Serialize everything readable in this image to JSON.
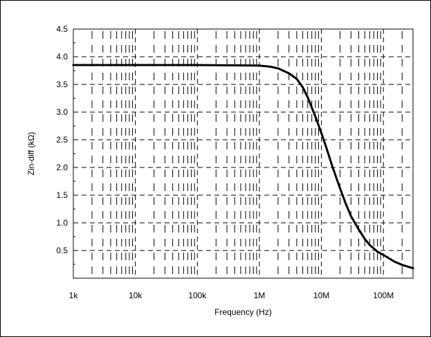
{
  "chart_data": {
    "type": "line",
    "title": "",
    "xlabel": "Frequency (Hz)",
    "ylabel": "Zin-diff (kΩ)",
    "xscale": "log",
    "xlim": [
      1000,
      300000000
    ],
    "ylim": [
      0,
      4.5
    ],
    "grid": "dashed",
    "legend": "none",
    "x_ticks": [
      {
        "value": 1000,
        "label": "1k"
      },
      {
        "value": 10000,
        "label": "10k"
      },
      {
        "value": 100000,
        "label": "100k"
      },
      {
        "value": 1000000,
        "label": "1M"
      },
      {
        "value": 10000000,
        "label": "10M"
      },
      {
        "value": 100000000,
        "label": "100M"
      }
    ],
    "y_ticks": [
      {
        "value": 0.5,
        "label": "0.5"
      },
      {
        "value": 1.0,
        "label": "1.0"
      },
      {
        "value": 1.5,
        "label": "1.5"
      },
      {
        "value": 2.0,
        "label": "2.0"
      },
      {
        "value": 2.5,
        "label": "2.5"
      },
      {
        "value": 3.0,
        "label": "3.0"
      },
      {
        "value": 3.5,
        "label": "3.5"
      },
      {
        "value": 4.0,
        "label": "4.0"
      },
      {
        "value": 4.5,
        "label": "4.5"
      }
    ],
    "series": [
      {
        "color": "#000000",
        "x": [
          1000,
          10000,
          100000,
          1000000,
          1500000,
          2000000,
          3000000,
          4000000,
          5000000,
          6000000,
          7000000,
          8000000,
          10000000,
          12000000,
          15000000,
          20000000,
          25000000,
          30000000,
          40000000,
          50000000,
          60000000,
          80000000,
          100000000,
          150000000,
          200000000,
          300000000
        ],
        "y": [
          3.85,
          3.85,
          3.85,
          3.84,
          3.82,
          3.79,
          3.7,
          3.6,
          3.45,
          3.27,
          3.08,
          2.92,
          2.62,
          2.36,
          2.02,
          1.62,
          1.33,
          1.12,
          0.88,
          0.71,
          0.6,
          0.48,
          0.42,
          0.3,
          0.24,
          0.18
        ]
      }
    ]
  }
}
